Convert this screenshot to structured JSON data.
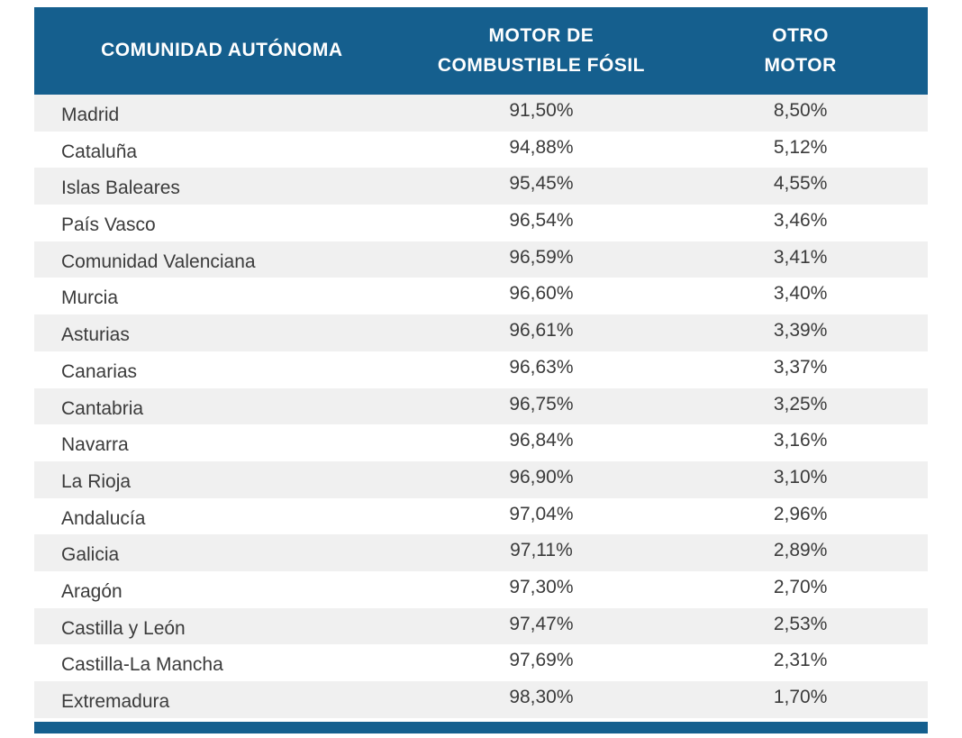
{
  "colors": {
    "header_bg": "#155F8E",
    "header_text": "#FFFFFF",
    "row_bg": "#FFFFFF",
    "row_alt_bg": "#F0F0F0",
    "row_text": "#3B3B3B"
  },
  "table": {
    "header": {
      "col1": "COMUNIDAD AUTÓNOMA",
      "col2_line1": "MOTOR DE",
      "col2_line2": "COMBUSTIBLE FÓSIL",
      "col3_line1": "OTRO",
      "col3_line2": "MOTOR"
    },
    "rows": [
      {
        "region": "Madrid",
        "fossil": "91,50%",
        "other": "8,50%"
      },
      {
        "region": "Cataluña",
        "fossil": "94,88%",
        "other": "5,12%"
      },
      {
        "region": "Islas Baleares",
        "fossil": "95,45%",
        "other": "4,55%"
      },
      {
        "region": "País Vasco",
        "fossil": "96,54%",
        "other": "3,46%"
      },
      {
        "region": "Comunidad Valenciana",
        "fossil": "96,59%",
        "other": "3,41%"
      },
      {
        "region": "Murcia",
        "fossil": "96,60%",
        "other": "3,40%"
      },
      {
        "region": "Asturias",
        "fossil": "96,61%",
        "other": "3,39%"
      },
      {
        "region": "Canarias",
        "fossil": "96,63%",
        "other": "3,37%"
      },
      {
        "region": "Cantabria",
        "fossil": "96,75%",
        "other": "3,25%"
      },
      {
        "region": "Navarra",
        "fossil": "96,84%",
        "other": "3,16%"
      },
      {
        "region": "La Rioja",
        "fossil": "96,90%",
        "other": "3,10%"
      },
      {
        "region": "Andalucía",
        "fossil": "97,04%",
        "other": "2,96%"
      },
      {
        "region": "Galicia",
        "fossil": "97,11%",
        "other": "2,89%"
      },
      {
        "region": "Aragón",
        "fossil": "97,30%",
        "other": "2,70%"
      },
      {
        "region": "Castilla y León",
        "fossil": "97,47%",
        "other": "2,53%"
      },
      {
        "region": "Castilla-La Mancha",
        "fossil": "97,69%",
        "other": "2,31%"
      },
      {
        "region": "Extremadura",
        "fossil": "98,30%",
        "other": "1,70%"
      }
    ]
  },
  "chart_data": {
    "type": "table",
    "title": "",
    "columns": [
      "COMUNIDAD AUTÓNOMA",
      "MOTOR DE COMBUSTIBLE FÓSIL",
      "OTRO MOTOR"
    ],
    "categories": [
      "Madrid",
      "Cataluña",
      "Islas Baleares",
      "País Vasco",
      "Comunidad Valenciana",
      "Murcia",
      "Asturias",
      "Canarias",
      "Cantabria",
      "Navarra",
      "La Rioja",
      "Andalucía",
      "Galicia",
      "Aragón",
      "Castilla y León",
      "Castilla-La Mancha",
      "Extremadura"
    ],
    "series": [
      {
        "name": "MOTOR DE COMBUSTIBLE FÓSIL",
        "values": [
          91.5,
          94.88,
          95.45,
          96.54,
          96.59,
          96.6,
          96.61,
          96.63,
          96.75,
          96.84,
          96.9,
          97.04,
          97.11,
          97.3,
          97.47,
          97.69,
          98.3
        ]
      },
      {
        "name": "OTRO MOTOR",
        "values": [
          8.5,
          5.12,
          4.55,
          3.46,
          3.41,
          3.4,
          3.39,
          3.37,
          3.25,
          3.16,
          3.1,
          2.96,
          2.89,
          2.7,
          2.53,
          2.31,
          1.7
        ]
      }
    ],
    "value_format": "percent, comma decimal separator",
    "layout": "header band dark blue, zebra-striped rows (light gray / white), blue bottom accent bar"
  }
}
